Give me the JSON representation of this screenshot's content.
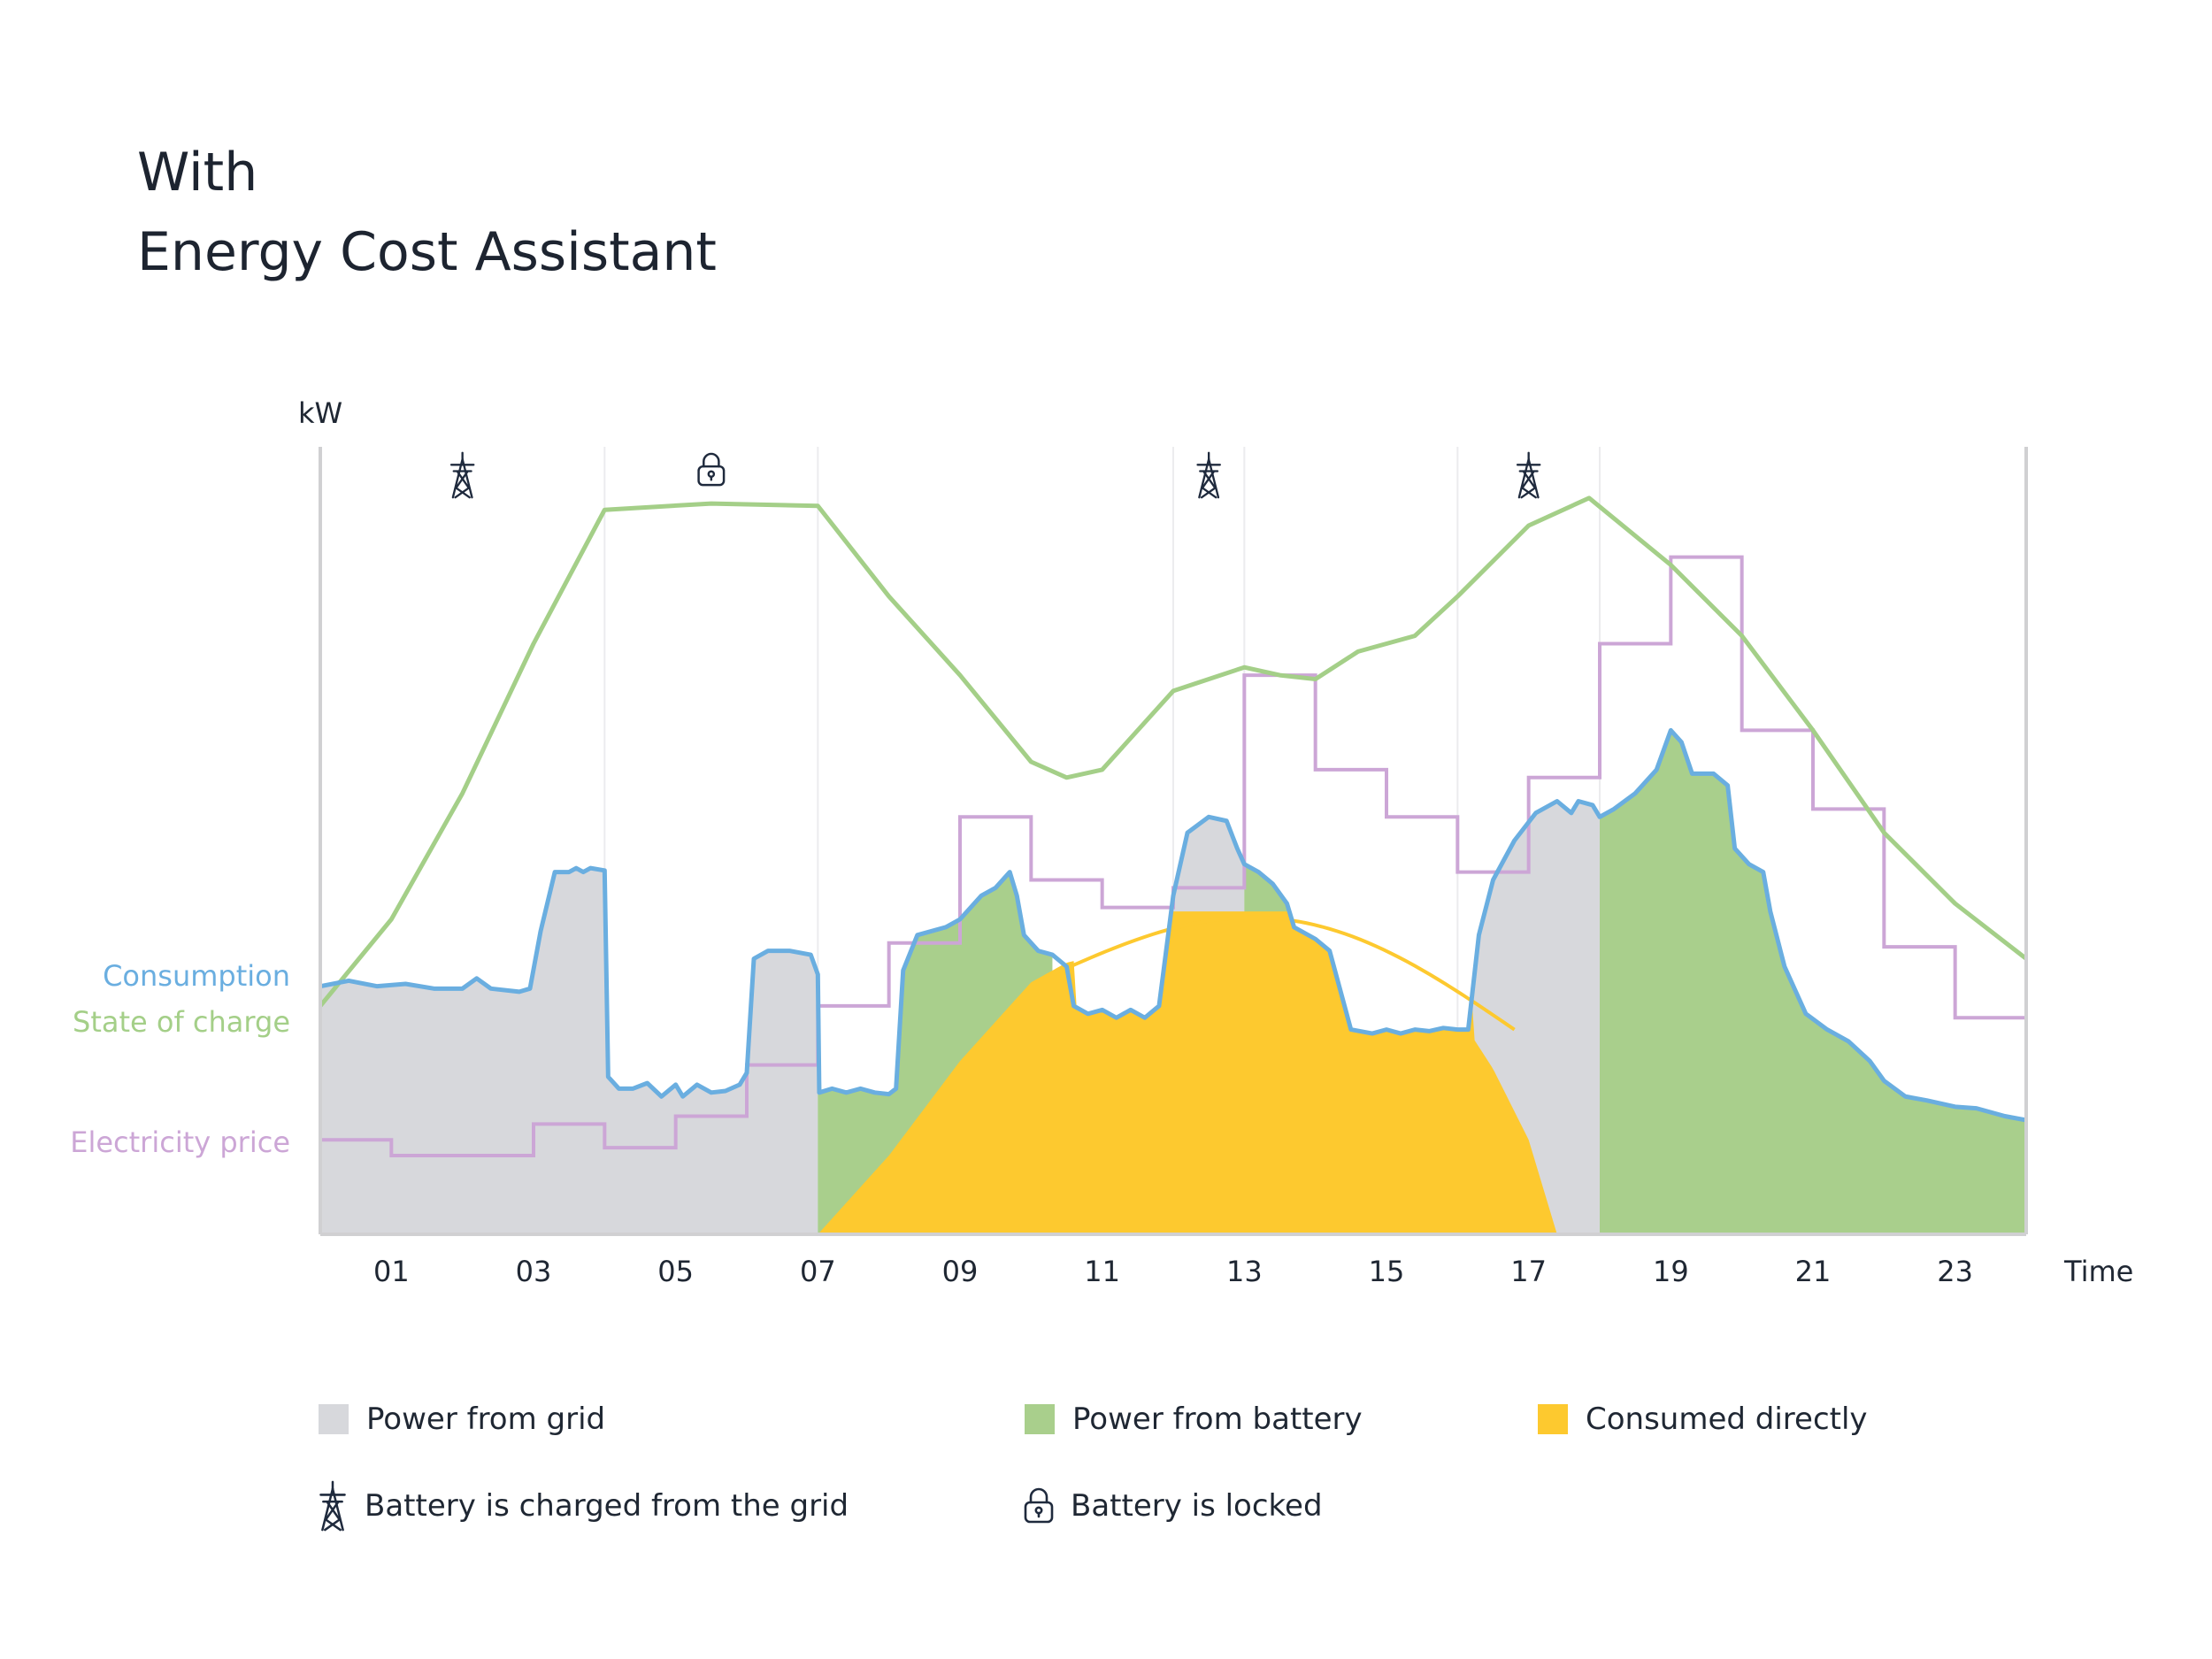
{
  "title": {
    "line1": "With",
    "line2": "Energy Cost Assistant"
  },
  "chart_data": {
    "type": "area",
    "title": "With Energy Cost Assistant",
    "ylabel": "kW",
    "xlabel": "Time",
    "xlim": [
      0,
      24
    ],
    "ylim": [
      0,
      10
    ],
    "x_ticks": [
      "01",
      "03",
      "05",
      "07",
      "09",
      "11",
      "13",
      "15",
      "17",
      "19",
      "21",
      "23"
    ],
    "x_tick_positions": [
      1,
      3,
      5,
      7,
      9,
      11,
      13,
      15,
      17,
      19,
      21,
      23
    ],
    "vertical_gridlines": [
      4,
      7,
      12,
      13,
      16,
      18
    ],
    "series_labels": {
      "consumption": "Consumption",
      "state_of_charge": "State of charge",
      "electricity_price": "Electricity price"
    },
    "colors": {
      "grid": "#d7d8dc",
      "battery": "#a9cf8c",
      "direct": "#fdc92f",
      "consumption": "#6aaee0",
      "state_of_charge": "#a4cf88",
      "electricity_price": "#cca6d6",
      "axis": "#d0d0d2",
      "icon": "#1f2a3d"
    },
    "consumption": [
      [
        0,
        3.15
      ],
      [
        0.4,
        3.22
      ],
      [
        0.8,
        3.15
      ],
      [
        1.2,
        3.18
      ],
      [
        1.6,
        3.12
      ],
      [
        2.0,
        3.12
      ],
      [
        2.2,
        3.25
      ],
      [
        2.4,
        3.12
      ],
      [
        2.8,
        3.08
      ],
      [
        2.95,
        3.12
      ],
      [
        3.1,
        3.85
      ],
      [
        3.3,
        4.6
      ],
      [
        3.5,
        4.6
      ],
      [
        3.6,
        4.65
      ],
      [
        3.7,
        4.6
      ],
      [
        3.8,
        4.65
      ],
      [
        4.0,
        4.62
      ],
      [
        4.05,
        2.0
      ],
      [
        4.2,
        1.85
      ],
      [
        4.4,
        1.85
      ],
      [
        4.6,
        1.92
      ],
      [
        4.8,
        1.75
      ],
      [
        5.0,
        1.9
      ],
      [
        5.1,
        1.75
      ],
      [
        5.3,
        1.9
      ],
      [
        5.5,
        1.8
      ],
      [
        5.7,
        1.82
      ],
      [
        5.9,
        1.9
      ],
      [
        6.0,
        2.05
      ],
      [
        6.1,
        3.5
      ],
      [
        6.3,
        3.6
      ],
      [
        6.6,
        3.6
      ],
      [
        6.9,
        3.55
      ],
      [
        7.0,
        3.3
      ],
      [
        7.02,
        1.8
      ],
      [
        7.2,
        1.85
      ],
      [
        7.4,
        1.8
      ],
      [
        7.6,
        1.85
      ],
      [
        7.8,
        1.8
      ],
      [
        8.0,
        1.78
      ],
      [
        8.1,
        1.85
      ],
      [
        8.2,
        3.35
      ],
      [
        8.4,
        3.8
      ],
      [
        8.8,
        3.9
      ],
      [
        9.0,
        4.0
      ],
      [
        9.3,
        4.3
      ],
      [
        9.5,
        4.4
      ],
      [
        9.7,
        4.6
      ],
      [
        9.8,
        4.3
      ],
      [
        9.9,
        3.8
      ],
      [
        10.1,
        3.6
      ],
      [
        10.3,
        3.55
      ],
      [
        10.5,
        3.4
      ],
      [
        10.6,
        2.9
      ],
      [
        10.8,
        2.8
      ],
      [
        11.0,
        2.85
      ],
      [
        11.2,
        2.75
      ],
      [
        11.4,
        2.85
      ],
      [
        11.6,
        2.75
      ],
      [
        11.8,
        2.9
      ],
      [
        12.0,
        4.3
      ],
      [
        12.2,
        5.1
      ],
      [
        12.5,
        5.3
      ],
      [
        12.75,
        5.25
      ],
      [
        12.9,
        4.9
      ],
      [
        13.0,
        4.7
      ],
      [
        13.2,
        4.6
      ],
      [
        13.4,
        4.45
      ],
      [
        13.6,
        4.2
      ],
      [
        13.7,
        3.9
      ],
      [
        14.0,
        3.75
      ],
      [
        14.2,
        3.6
      ],
      [
        14.35,
        3.1
      ],
      [
        14.5,
        2.6
      ],
      [
        14.8,
        2.55
      ],
      [
        15.0,
        2.6
      ],
      [
        15.2,
        2.55
      ],
      [
        15.4,
        2.6
      ],
      [
        15.6,
        2.58
      ],
      [
        15.8,
        2.62
      ],
      [
        16.0,
        2.6
      ],
      [
        16.15,
        2.6
      ],
      [
        16.3,
        3.8
      ],
      [
        16.5,
        4.5
      ],
      [
        16.8,
        5.0
      ],
      [
        17.1,
        5.35
      ],
      [
        17.4,
        5.5
      ],
      [
        17.6,
        5.35
      ],
      [
        17.7,
        5.5
      ],
      [
        17.9,
        5.45
      ],
      [
        18.0,
        5.3
      ],
      [
        18.2,
        5.4
      ],
      [
        18.5,
        5.6
      ],
      [
        18.8,
        5.9
      ],
      [
        19.0,
        6.4
      ],
      [
        19.15,
        6.25
      ],
      [
        19.3,
        5.85
      ],
      [
        19.6,
        5.85
      ],
      [
        19.8,
        5.7
      ],
      [
        19.9,
        4.9
      ],
      [
        20.1,
        4.7
      ],
      [
        20.3,
        4.6
      ],
      [
        20.4,
        4.1
      ],
      [
        20.6,
        3.4
      ],
      [
        20.9,
        2.8
      ],
      [
        21.2,
        2.6
      ],
      [
        21.5,
        2.45
      ],
      [
        21.8,
        2.2
      ],
      [
        22.0,
        1.95
      ],
      [
        22.3,
        1.75
      ],
      [
        22.6,
        1.7
      ],
      [
        23.0,
        1.62
      ],
      [
        23.3,
        1.6
      ],
      [
        23.7,
        1.5
      ],
      [
        24.0,
        1.45
      ]
    ],
    "state_of_charge": [
      [
        0,
        2.9
      ],
      [
        1.0,
        4.0
      ],
      [
        2.0,
        5.6
      ],
      [
        3.0,
        7.5
      ],
      [
        4.0,
        9.2
      ],
      [
        5.5,
        9.28
      ],
      [
        7.0,
        9.25
      ],
      [
        8.0,
        8.1
      ],
      [
        9.0,
        7.1
      ],
      [
        10.0,
        6.0
      ],
      [
        10.5,
        5.8
      ],
      [
        11.0,
        5.9
      ],
      [
        12.0,
        6.9
      ],
      [
        13.0,
        7.2
      ],
      [
        13.5,
        7.1
      ],
      [
        14.0,
        7.05
      ],
      [
        14.6,
        7.4
      ],
      [
        15.4,
        7.6
      ],
      [
        16.0,
        8.1
      ],
      [
        17.0,
        9.0
      ],
      [
        17.85,
        9.35
      ],
      [
        19.0,
        8.5
      ],
      [
        20.0,
        7.6
      ],
      [
        21.0,
        6.4
      ],
      [
        22.0,
        5.1
      ],
      [
        23.0,
        4.2
      ],
      [
        24.0,
        3.5
      ]
    ],
    "electricity_price": [
      [
        0,
        1.2
      ],
      [
        1,
        1.2
      ],
      [
        1,
        1.0
      ],
      [
        3,
        1.0
      ],
      [
        3,
        1.4
      ],
      [
        4,
        1.4
      ],
      [
        4,
        1.1
      ],
      [
        5,
        1.1
      ],
      [
        5,
        1.5
      ],
      [
        6,
        1.5
      ],
      [
        6,
        2.15
      ],
      [
        7,
        2.15
      ],
      [
        7,
        2.9
      ],
      [
        8,
        2.9
      ],
      [
        8,
        3.7
      ],
      [
        9,
        3.7
      ],
      [
        9,
        5.3
      ],
      [
        10,
        5.3
      ],
      [
        10,
        4.5
      ],
      [
        11,
        4.5
      ],
      [
        11,
        4.15
      ],
      [
        12,
        4.15
      ],
      [
        12,
        4.4
      ],
      [
        13,
        4.4
      ],
      [
        13,
        7.1
      ],
      [
        14,
        7.1
      ],
      [
        14,
        5.9
      ],
      [
        15,
        5.9
      ],
      [
        15,
        5.3
      ],
      [
        16,
        5.3
      ],
      [
        16,
        4.6
      ],
      [
        17,
        4.6
      ],
      [
        17,
        5.8
      ],
      [
        18,
        5.8
      ],
      [
        18,
        7.5
      ],
      [
        19,
        7.5
      ],
      [
        19,
        8.6
      ],
      [
        20,
        8.6
      ],
      [
        20,
        6.4
      ],
      [
        21,
        6.4
      ],
      [
        21,
        5.4
      ],
      [
        22,
        5.4
      ],
      [
        22,
        3.65
      ],
      [
        23,
        3.65
      ],
      [
        23,
        2.75
      ],
      [
        24,
        2.75
      ]
    ],
    "consumed_directly_envelope": [
      [
        7.0,
        0
      ],
      [
        8.0,
        1.0
      ],
      [
        9.0,
        2.2
      ],
      [
        10.0,
        3.2
      ],
      [
        10.5,
        3.45
      ],
      [
        11.0,
        3.55
      ],
      [
        12.0,
        3.9
      ],
      [
        13.0,
        4.05
      ],
      [
        14.0,
        3.9
      ],
      [
        15.0,
        3.4
      ],
      [
        16.0,
        2.8
      ],
      [
        16.5,
        2.1
      ],
      [
        17.0,
        1.2
      ],
      [
        17.4,
        0
      ]
    ],
    "solar_arc": {
      "start": 10.3,
      "end": 16.8,
      "peak": 4.05
    },
    "battery_regions": [
      [
        7.0,
        10.3
      ],
      [
        13.0,
        13.6
      ],
      [
        18.0,
        24.0
      ]
    ],
    "grid_regions": [
      [
        0,
        7.0
      ],
      [
        12.0,
        13.0
      ],
      [
        16.2,
        18.0
      ]
    ],
    "grid_charge_icons": [
      2,
      12.5,
      17
    ],
    "lock_icons": [
      5.5
    ]
  },
  "legend": {
    "grid_label": "Power from grid",
    "battery_label": "Power from battery",
    "direct_label": "Consumed directly",
    "charged_label": "Battery is charged from the grid",
    "locked_label": "Battery is locked",
    "tower_icon": "power-tower-icon",
    "lock_icon": "lock-icon"
  }
}
